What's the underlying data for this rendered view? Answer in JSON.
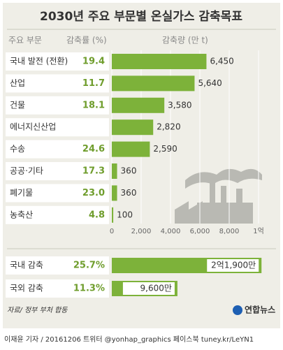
{
  "chart_data": [
    {
      "type": "bar",
      "orientation": "horizontal",
      "title": "2030년 주요 부문별 온실가스 감축목표",
      "category_header": "주요 부문",
      "rate_header": "감축률 (%)",
      "value_header": "감축량 (만 t)",
      "categories": [
        "국내 발전 (전환)",
        "산업",
        "건물",
        "에너지신산업",
        "수송",
        "공공·기타",
        "폐기물",
        "농축산"
      ],
      "rates": [
        19.4,
        11.7,
        18.1,
        null,
        24.6,
        17.3,
        23.0,
        4.8
      ],
      "rate_labels": [
        "19.4",
        "11.7",
        "18.1",
        null,
        "24.6",
        "17.3",
        "23.0",
        "4.8"
      ],
      "values": [
        6450,
        5640,
        3580,
        2820,
        2590,
        360,
        360,
        100
      ],
      "value_labels": [
        "6,450",
        "5,640",
        "3,580",
        "2,820",
        "2,590",
        "360",
        "360",
        "100"
      ],
      "color": "#7db23a",
      "xlim": [
        0,
        10000
      ],
      "xticks": [
        0,
        {
          "value": 2000,
          "label": "2,000"
        },
        {
          "value": 4000,
          "label": "4,000"
        },
        {
          "value": 6000,
          "label": "6,000"
        },
        {
          "value": 8000,
          "label": "8,000"
        },
        {
          "value": 10000,
          "label": "1억"
        }
      ],
      "grid": true
    },
    {
      "type": "bar",
      "orientation": "horizontal",
      "categories": [
        "국내 감축",
        "국외 감축"
      ],
      "rates": [
        25.7,
        11.3
      ],
      "rate_labels": [
        "25.7%",
        "11.3%"
      ],
      "values": [
        21900,
        9600
      ],
      "value_labels": [
        "2억1,900만",
        "9,600만"
      ],
      "color": "#7db23a",
      "xlim": [
        0,
        23000
      ]
    }
  ],
  "source": "자료/ 정부 부처 합동",
  "logo": "연합뉴스",
  "credit": "이재윤 기자 / 20161206  트위터 @yonhap_graphics  페이스북 tuney.kr/LeYN1"
}
